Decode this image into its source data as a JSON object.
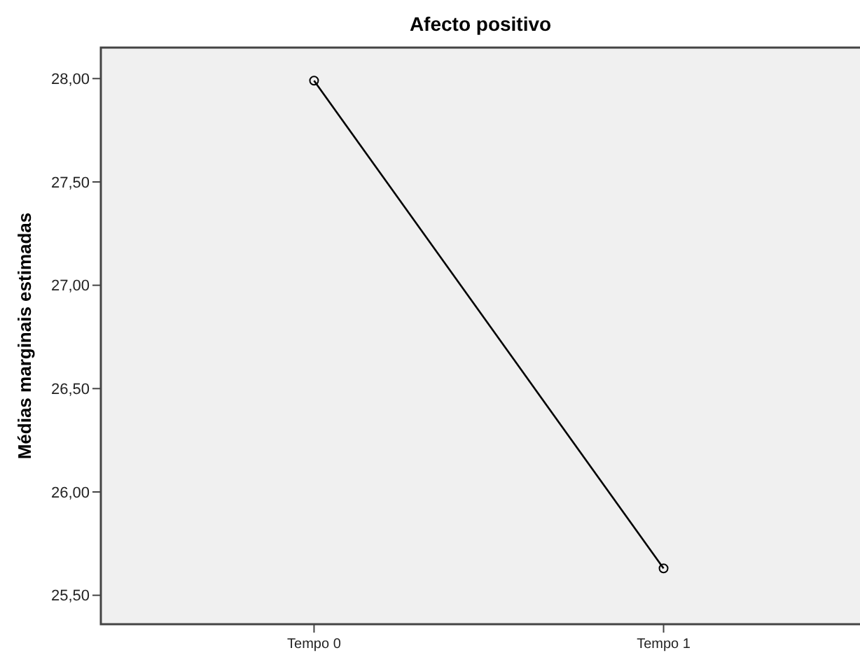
{
  "chart_data": {
    "type": "line",
    "title": "Afecto positivo",
    "ylabel": "Médias marginais estimadas",
    "categories": [
      "Tempo 0",
      "Tempo 1"
    ],
    "series": [
      {
        "color": "#000000",
        "values": [
          27.99,
          25.63
        ]
      }
    ],
    "ylim": [
      25.36,
      28.15
    ],
    "yticks": [
      {
        "value": 25.5,
        "label": "25,50"
      },
      {
        "value": 26,
        "label": "26,00"
      },
      {
        "value": 26.5,
        "label": "26,50"
      },
      {
        "value": 27,
        "label": "27,00"
      },
      {
        "value": 27.5,
        "label": "27,50"
      },
      {
        "value": 28,
        "label": "28,00"
      }
    ],
    "marker": "circle",
    "grid": false
  }
}
